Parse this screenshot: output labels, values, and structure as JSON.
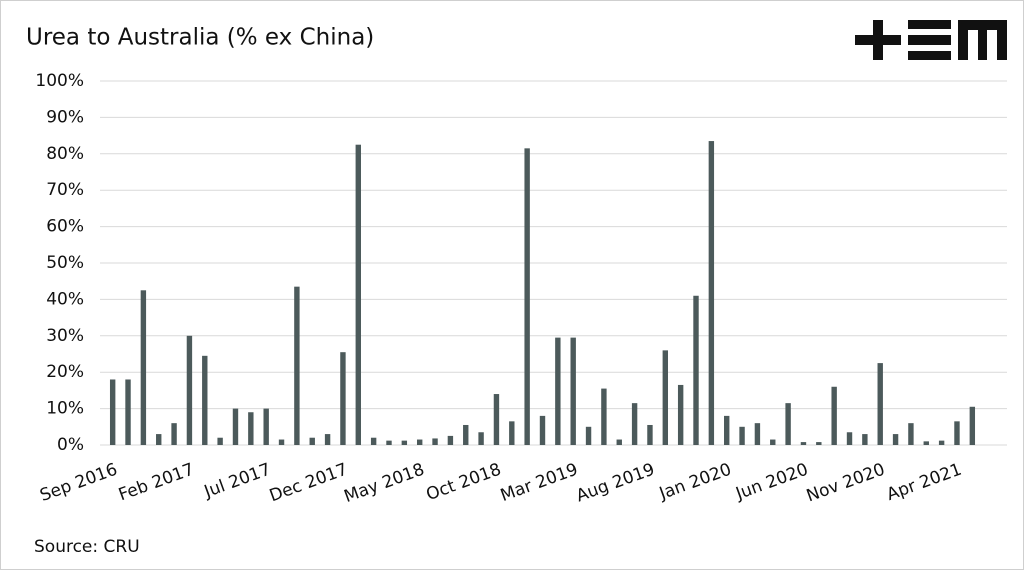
{
  "chart_data": {
    "type": "bar",
    "title": "Urea to Australia (% ex China)",
    "source": "Source: CRU",
    "categories": [
      "Sep 2016",
      null,
      null,
      null,
      null,
      "Feb 2017",
      null,
      null,
      null,
      null,
      "Jul 2017",
      null,
      null,
      null,
      null,
      "Dec 2017",
      null,
      null,
      null,
      null,
      "May 2018",
      null,
      null,
      null,
      null,
      "Oct 2018",
      null,
      null,
      null,
      null,
      "Mar 2019",
      null,
      null,
      null,
      null,
      "Aug 2019",
      null,
      null,
      null,
      null,
      "Jan 2020",
      null,
      null,
      null,
      null,
      "Jun 2020",
      null,
      null,
      null,
      null,
      "Nov 2020",
      null,
      null,
      null,
      null,
      "Apr 2021",
      null
    ],
    "values": [
      18,
      18,
      42.5,
      3,
      6,
      30,
      24.5,
      2,
      10,
      9,
      10,
      1.5,
      43.5,
      2,
      3,
      25.5,
      82.5,
      2,
      1.2,
      1.2,
      1.5,
      1.8,
      2.5,
      5.5,
      3.5,
      14,
      6.5,
      81.5,
      8,
      29.5,
      29.5,
      5,
      15.5,
      1.5,
      11.5,
      5.5,
      26,
      16.5,
      41,
      83.5,
      8,
      5,
      6,
      1.5,
      11.5,
      0.8,
      0.8,
      16,
      3.5,
      3,
      22.5,
      3,
      6,
      1,
      1.2,
      6.5,
      10.5
    ],
    "color": "#4c5a5b",
    "ylim": [
      0,
      100
    ],
    "yticks": [
      {
        "value": 0,
        "label": "0%"
      },
      {
        "value": 10,
        "label": "10%"
      },
      {
        "value": 20,
        "label": "20%"
      },
      {
        "value": 30,
        "label": "30%"
      },
      {
        "value": 40,
        "label": "40%"
      },
      {
        "value": 50,
        "label": "50%"
      },
      {
        "value": 60,
        "label": "60%"
      },
      {
        "value": 70,
        "label": "70%"
      },
      {
        "value": 80,
        "label": "80%"
      },
      {
        "value": 90,
        "label": "90%"
      },
      {
        "value": 100,
        "label": "100%"
      }
    ],
    "grid": true
  }
}
